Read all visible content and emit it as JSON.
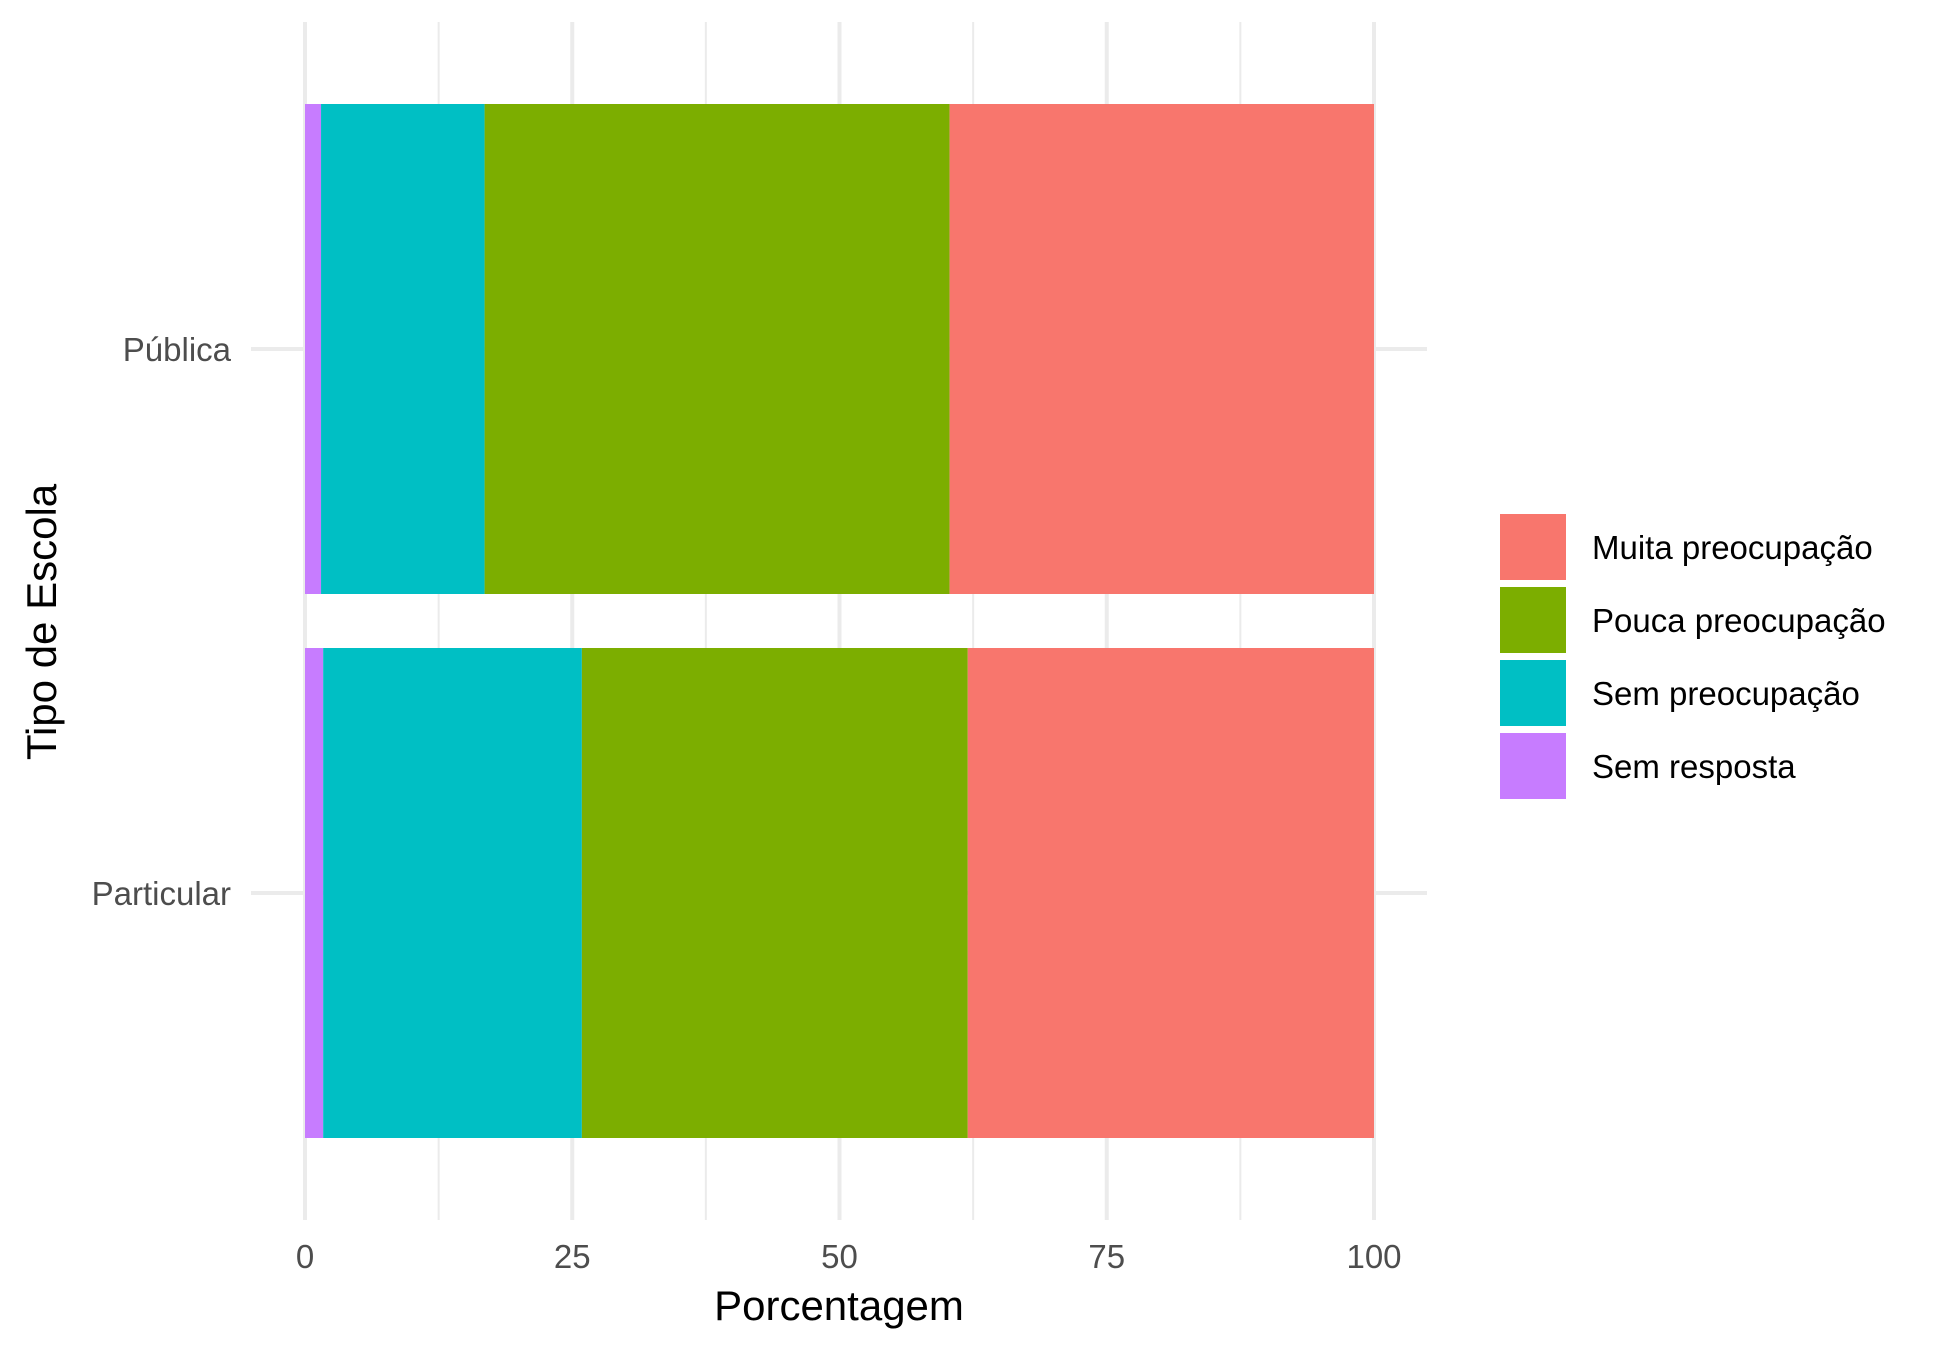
{
  "chart_data": {
    "type": "bar",
    "orientation": "horizontal",
    "stacked": true,
    "title": "",
    "xlabel": "Porcentagem",
    "ylabel": "Tipo de Escola",
    "xlim": [
      0,
      100
    ],
    "x_ticks": [
      "0",
      "25",
      "50",
      "75",
      "100"
    ],
    "categories": [
      "Pública",
      "Particular"
    ],
    "series": [
      {
        "name": "Sem resposta",
        "color": "#C77CFF",
        "values": [
          1.5,
          1.7
        ]
      },
      {
        "name": "Sem preocupação",
        "color": "#00BFC4",
        "values": [
          15.3,
          24.2
        ]
      },
      {
        "name": "Pouca preocupação",
        "color": "#7CAE00",
        "values": [
          43.5,
          36.1
        ]
      },
      {
        "name": "Muita preocupação",
        "color": "#F8766D",
        "values": [
          39.7,
          38.0
        ]
      }
    ],
    "legend": {
      "position": "right",
      "entries": [
        "Muita preocupação",
        "Pouca preocupação",
        "Sem preocupação",
        "Sem resposta"
      ]
    },
    "grid": true
  }
}
